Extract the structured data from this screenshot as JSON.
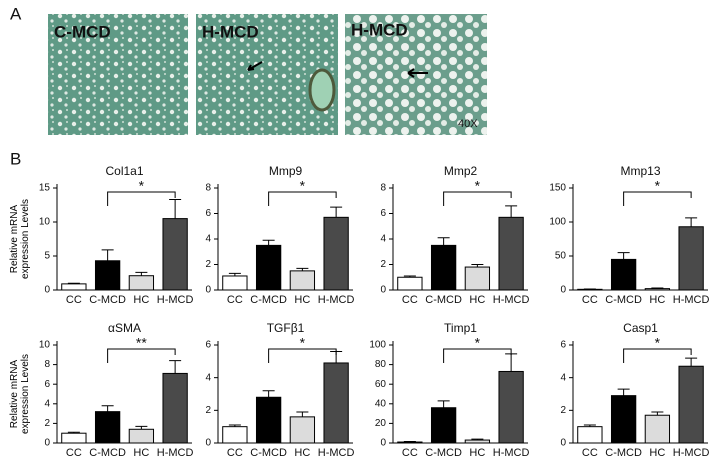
{
  "panel_labels": [
    "A",
    "B"
  ],
  "micrographs": [
    {
      "label": "C-MCD"
    },
    {
      "label": "H-MCD"
    },
    {
      "label": "H-MCD",
      "magnification": "40X"
    }
  ],
  "chart_data": [
    {
      "type": "bar",
      "title": "Col1a1",
      "ylabel": "Relative mRNA expression Levels",
      "categories": [
        "CC",
        "C-MCD",
        "HC",
        "H-MCD"
      ],
      "values": [
        0.9,
        4.3,
        2.1,
        10.5
      ],
      "errors": [
        0.1,
        1.6,
        0.5,
        2.8
      ],
      "colors": [
        "#ffffff",
        "#000000",
        "#dcdcdc",
        "#4a4a4a"
      ],
      "ylim": [
        0,
        15
      ],
      "yticks": [
        0,
        5,
        10,
        15
      ],
      "significance": "*"
    },
    {
      "type": "bar",
      "title": "Mmp9",
      "categories": [
        "CC",
        "C-MCD",
        "HC",
        "H-MCD"
      ],
      "values": [
        1.1,
        3.5,
        1.5,
        5.7
      ],
      "errors": [
        0.2,
        0.4,
        0.2,
        0.8
      ],
      "colors": [
        "#ffffff",
        "#000000",
        "#dcdcdc",
        "#4a4a4a"
      ],
      "ylim": [
        0,
        8
      ],
      "yticks": [
        0,
        2,
        4,
        6,
        8
      ],
      "significance": "*"
    },
    {
      "type": "bar",
      "title": "Mmp2",
      "categories": [
        "CC",
        "C-MCD",
        "HC",
        "H-MCD"
      ],
      "values": [
        1.0,
        3.5,
        1.8,
        5.7
      ],
      "errors": [
        0.1,
        0.6,
        0.2,
        0.9
      ],
      "colors": [
        "#ffffff",
        "#000000",
        "#dcdcdc",
        "#4a4a4a"
      ],
      "ylim": [
        0,
        8
      ],
      "yticks": [
        0,
        2,
        4,
        6,
        8
      ],
      "significance": "*"
    },
    {
      "type": "bar",
      "title": "Mmp13",
      "categories": [
        "CC",
        "C-MCD",
        "HC",
        "H-MCD"
      ],
      "values": [
        1,
        45,
        2,
        93
      ],
      "errors": [
        0.5,
        10,
        1,
        13
      ],
      "colors": [
        "#ffffff",
        "#000000",
        "#dcdcdc",
        "#4a4a4a"
      ],
      "ylim": [
        0,
        150
      ],
      "yticks": [
        0,
        50,
        100,
        150
      ],
      "significance": "*"
    },
    {
      "type": "bar",
      "title": "αSMA",
      "ylabel": "Relative mRNA expression Levels",
      "categories": [
        "CC",
        "C-MCD",
        "HC",
        "H-MCD"
      ],
      "values": [
        1.0,
        3.2,
        1.4,
        7.1
      ],
      "errors": [
        0.1,
        0.6,
        0.3,
        1.3
      ],
      "colors": [
        "#ffffff",
        "#000000",
        "#dcdcdc",
        "#4a4a4a"
      ],
      "ylim": [
        0,
        10
      ],
      "yticks": [
        0,
        2,
        4,
        6,
        8,
        10
      ],
      "significance": "**"
    },
    {
      "type": "bar",
      "title": "TGFβ1",
      "categories": [
        "CC",
        "C-MCD",
        "HC",
        "H-MCD"
      ],
      "values": [
        1.0,
        2.8,
        1.6,
        4.9
      ],
      "errors": [
        0.1,
        0.4,
        0.3,
        0.7
      ],
      "colors": [
        "#ffffff",
        "#000000",
        "#dcdcdc",
        "#4a4a4a"
      ],
      "ylim": [
        0,
        6
      ],
      "yticks": [
        0,
        2,
        4,
        6
      ],
      "significance": "*"
    },
    {
      "type": "bar",
      "title": "Timp1",
      "categories": [
        "CC",
        "C-MCD",
        "HC",
        "H-MCD"
      ],
      "values": [
        1,
        36,
        3,
        73
      ],
      "errors": [
        0.5,
        7,
        1,
        18
      ],
      "colors": [
        "#ffffff",
        "#000000",
        "#dcdcdc",
        "#4a4a4a"
      ],
      "ylim": [
        0,
        100
      ],
      "yticks": [
        0,
        20,
        40,
        60,
        80,
        100
      ],
      "significance": "*"
    },
    {
      "type": "bar",
      "title": "Casp1",
      "categories": [
        "CC",
        "C-MCD",
        "HC",
        "H-MCD"
      ],
      "values": [
        1.0,
        2.9,
        1.7,
        4.7
      ],
      "errors": [
        0.1,
        0.4,
        0.2,
        0.5
      ],
      "colors": [
        "#ffffff",
        "#000000",
        "#dcdcdc",
        "#4a4a4a"
      ],
      "ylim": [
        0,
        6
      ],
      "yticks": [
        0,
        2,
        4,
        6
      ],
      "significance": "*"
    }
  ]
}
